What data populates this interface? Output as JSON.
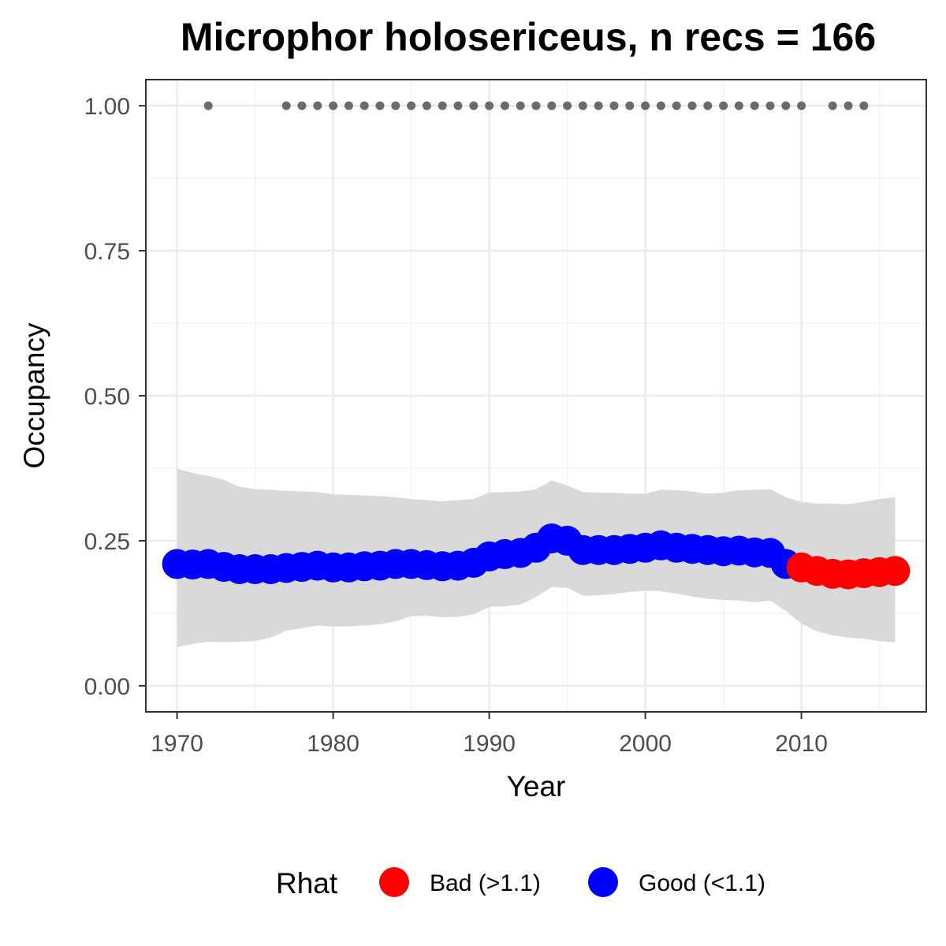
{
  "chart_data": {
    "type": "line",
    "title": "Microphor holosericeus, n recs = 166",
    "xlabel": "Year",
    "ylabel": "Occupancy",
    "xlim": [
      1968,
      2018
    ],
    "ylim": [
      -0.045,
      1.045
    ],
    "x_ticks": [
      1970,
      1980,
      1990,
      2000,
      2010
    ],
    "x_tick_labels": [
      "1970",
      "1980",
      "1990",
      "2000",
      "2010"
    ],
    "y_ticks": [
      0,
      0.25,
      0.5,
      0.75,
      1
    ],
    "y_tick_labels": [
      "0.00",
      "0.25",
      "0.50",
      "0.75",
      "1.00"
    ],
    "grid": true,
    "legend_position": "bottom",
    "colors": {
      "band": "#d9d9d9",
      "obs": "#6b6b6b",
      "good": "#0000ff",
      "bad": "#ff0000"
    },
    "legend": {
      "title": "Rhat",
      "entries": [
        {
          "label": "Bad (>1.1)",
          "color": "#ff0000"
        },
        {
          "label": "Good (<1.1)",
          "color": "#0000ff"
        }
      ]
    },
    "series": [
      {
        "name": "Occupancy",
        "x": [
          1970,
          1971,
          1972,
          1973,
          1974,
          1975,
          1976,
          1977,
          1978,
          1979,
          1980,
          1981,
          1982,
          1983,
          1984,
          1985,
          1986,
          1987,
          1988,
          1989,
          1990,
          1991,
          1992,
          1993,
          1994,
          1995,
          1996,
          1997,
          1998,
          1999,
          2000,
          2001,
          2002,
          2003,
          2004,
          2005,
          2006,
          2007,
          2008,
          2009,
          2010,
          2011,
          2012,
          2013,
          2014,
          2015,
          2016
        ],
        "y": [
          0.21,
          0.209,
          0.21,
          0.205,
          0.201,
          0.201,
          0.201,
          0.203,
          0.205,
          0.207,
          0.204,
          0.204,
          0.206,
          0.207,
          0.21,
          0.21,
          0.208,
          0.206,
          0.207,
          0.212,
          0.223,
          0.227,
          0.229,
          0.238,
          0.254,
          0.25,
          0.234,
          0.234,
          0.234,
          0.236,
          0.238,
          0.242,
          0.238,
          0.236,
          0.234,
          0.232,
          0.233,
          0.23,
          0.229,
          0.21,
          0.204,
          0.198,
          0.193,
          0.192,
          0.194,
          0.196,
          0.198
        ],
        "rhat": [
          "good",
          "good",
          "good",
          "good",
          "good",
          "good",
          "good",
          "good",
          "good",
          "good",
          "good",
          "good",
          "good",
          "good",
          "good",
          "good",
          "good",
          "good",
          "good",
          "good",
          "good",
          "good",
          "good",
          "good",
          "good",
          "good",
          "good",
          "good",
          "good",
          "good",
          "good",
          "good",
          "good",
          "good",
          "good",
          "good",
          "good",
          "good",
          "good",
          "good",
          "bad",
          "bad",
          "bad",
          "bad",
          "bad",
          "bad",
          "bad"
        ]
      }
    ],
    "ribbon": {
      "x": [
        1970,
        1971,
        1972,
        1973,
        1974,
        1975,
        1976,
        1977,
        1978,
        1979,
        1980,
        1981,
        1982,
        1983,
        1984,
        1985,
        1986,
        1987,
        1988,
        1989,
        1990,
        1991,
        1992,
        1993,
        1994,
        1995,
        1996,
        1997,
        1998,
        1999,
        2000,
        2001,
        2002,
        2003,
        2004,
        2005,
        2006,
        2007,
        2008,
        2009,
        2010,
        2011,
        2012,
        2013,
        2014,
        2015,
        2016
      ],
      "lower": [
        0.067,
        0.072,
        0.076,
        0.075,
        0.076,
        0.077,
        0.083,
        0.095,
        0.099,
        0.104,
        0.102,
        0.102,
        0.104,
        0.106,
        0.111,
        0.12,
        0.121,
        0.118,
        0.119,
        0.123,
        0.136,
        0.137,
        0.14,
        0.153,
        0.17,
        0.169,
        0.155,
        0.156,
        0.158,
        0.162,
        0.164,
        0.163,
        0.159,
        0.154,
        0.15,
        0.148,
        0.147,
        0.144,
        0.147,
        0.129,
        0.107,
        0.094,
        0.087,
        0.083,
        0.081,
        0.077,
        0.075
      ],
      "upper": [
        0.374,
        0.367,
        0.362,
        0.355,
        0.343,
        0.339,
        0.338,
        0.336,
        0.335,
        0.334,
        0.33,
        0.329,
        0.328,
        0.327,
        0.325,
        0.322,
        0.32,
        0.318,
        0.32,
        0.322,
        0.333,
        0.334,
        0.335,
        0.339,
        0.354,
        0.345,
        0.334,
        0.333,
        0.333,
        0.331,
        0.331,
        0.338,
        0.337,
        0.335,
        0.331,
        0.333,
        0.337,
        0.338,
        0.339,
        0.325,
        0.317,
        0.314,
        0.314,
        0.313,
        0.317,
        0.322,
        0.325
      ]
    },
    "observations": {
      "x": [
        1972,
        1977,
        1978,
        1979,
        1980,
        1981,
        1982,
        1983,
        1984,
        1985,
        1986,
        1987,
        1988,
        1989,
        1990,
        1991,
        1992,
        1993,
        1994,
        1995,
        1996,
        1997,
        1998,
        1999,
        2000,
        2001,
        2002,
        2003,
        2004,
        2005,
        2006,
        2007,
        2008,
        2009,
        2010,
        2012,
        2013,
        2014
      ],
      "y": 1
    }
  }
}
